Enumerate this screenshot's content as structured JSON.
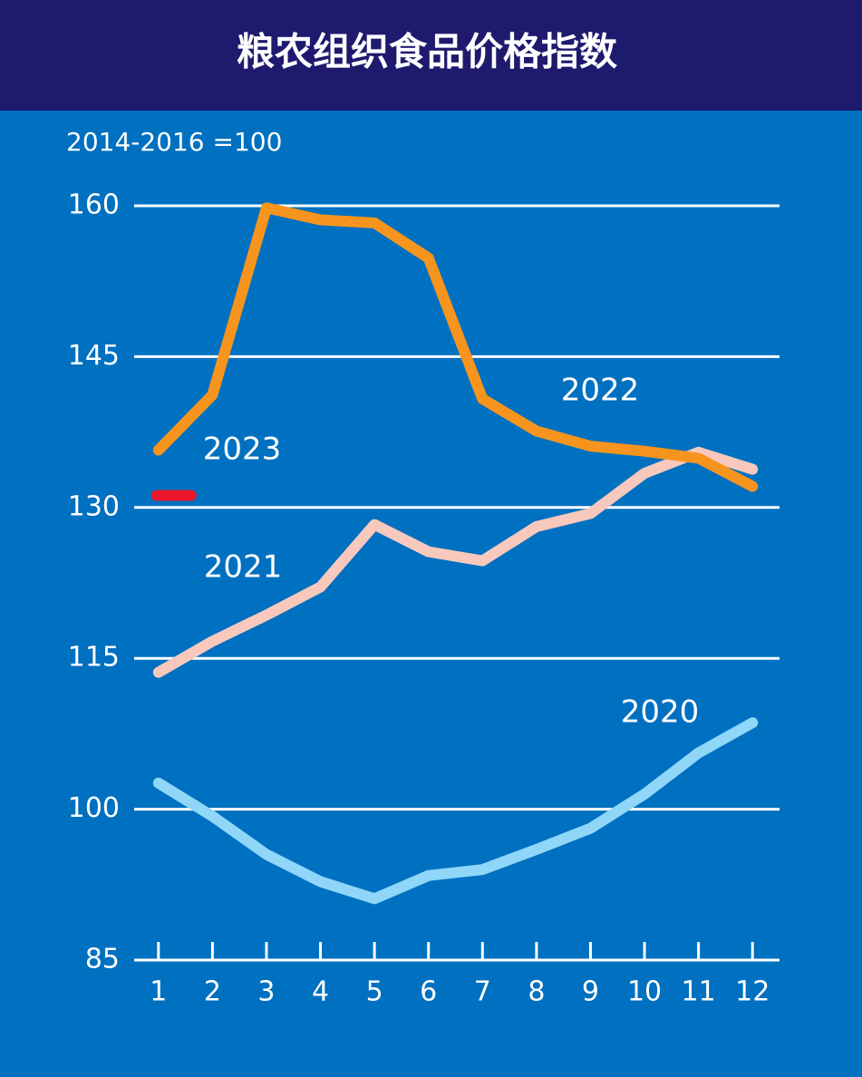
{
  "chart_data": {
    "type": "line",
    "title": "粮农组织食品价格指数",
    "subtitle": "2014-2016 =100",
    "x": [
      1,
      2,
      3,
      4,
      5,
      6,
      7,
      8,
      9,
      10,
      11,
      12
    ],
    "xlim": [
      0.55,
      12.5
    ],
    "xticks": [
      1,
      2,
      3,
      4,
      5,
      6,
      7,
      8,
      9,
      10,
      11,
      12
    ],
    "ylim": [
      85,
      160
    ],
    "yticks": [
      85,
      100,
      115,
      130,
      145,
      160
    ],
    "grid": true,
    "series": [
      {
        "name": "2020",
        "color": "#8fd6f8",
        "values": [
          102.6,
          99.3,
          95.5,
          92.8,
          91.1,
          93.4,
          94.0,
          96.0,
          98.1,
          101.5,
          105.6,
          108.6
        ]
      },
      {
        "name": "2021",
        "color": "#f8c8bd",
        "values": [
          113.6,
          116.7,
          119.3,
          122.1,
          128.3,
          125.6,
          124.7,
          128.1,
          129.4,
          133.4,
          135.5,
          133.8
        ]
      },
      {
        "name": "2022",
        "color": "#f7941d",
        "values": [
          135.7,
          141.2,
          159.8,
          158.6,
          158.3,
          154.8,
          140.8,
          137.6,
          136.1,
          135.6,
          134.9,
          132.1
        ]
      },
      {
        "name": "2023",
        "color": "#e8152b",
        "values": [
          131.2,
          null,
          null,
          null,
          null,
          null,
          null,
          null,
          null,
          null,
          null,
          null
        ]
      }
    ]
  }
}
